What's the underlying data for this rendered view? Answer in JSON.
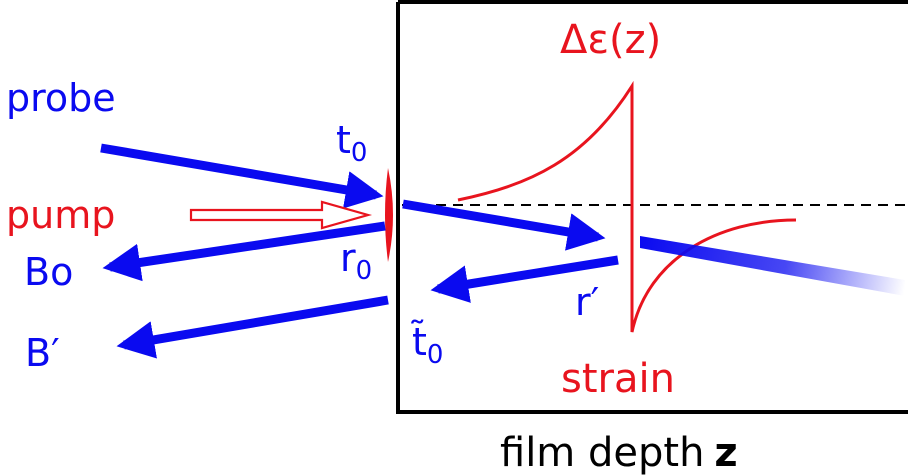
{
  "labels": {
    "probe": "probe",
    "pump": "pump",
    "bo": "Bo",
    "b_prime": "B′",
    "t0_base": "t",
    "t0_sub": "0",
    "r0_base": "r",
    "r0_sub": "0",
    "t0_tilde_base": "t̃",
    "t0_tilde_sub": "0",
    "r_prime": "r′",
    "delta_eps": "Δε(z)",
    "strain": "strain",
    "axis_word": "film depth",
    "axis_var": "z"
  },
  "colors": {
    "beam": "#0a0af0",
    "signal": "#e8141e",
    "frame": "#000000"
  }
}
